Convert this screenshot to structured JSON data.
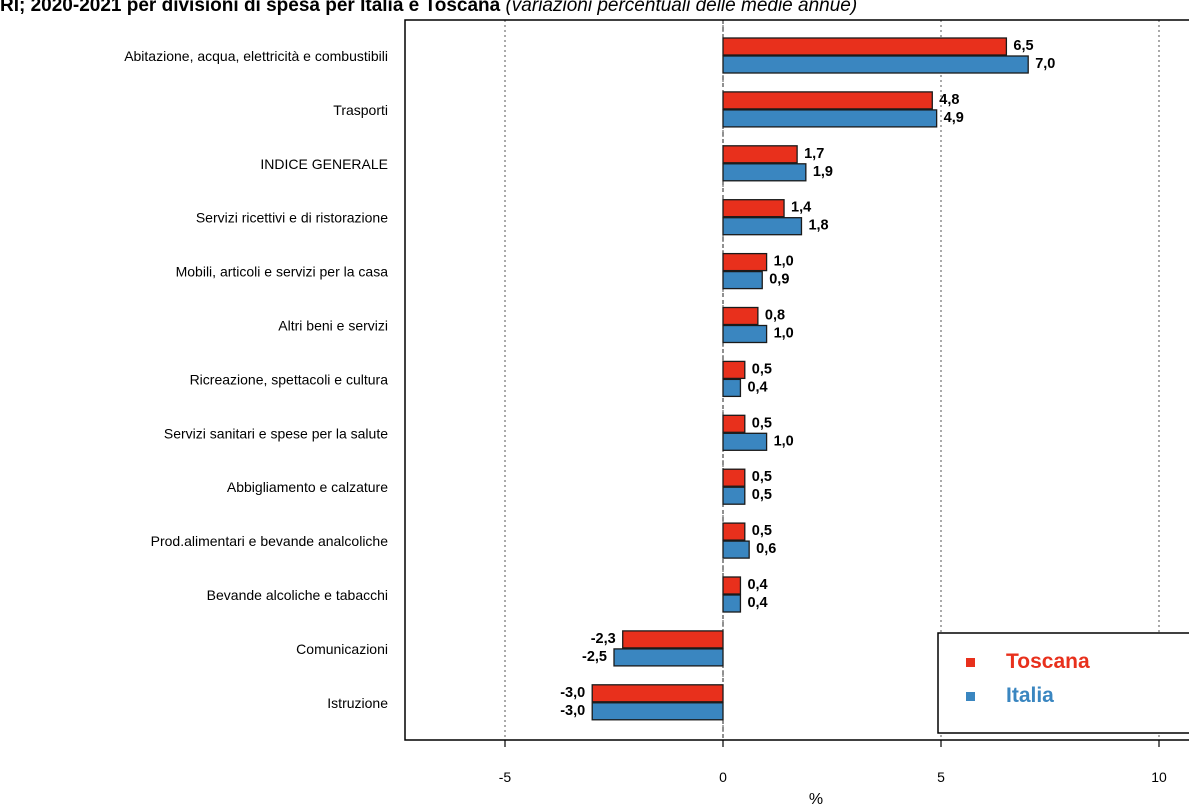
{
  "title": {
    "bold_part": "RI; 2020-2021 per divisioni di spesa per Italia e Toscana",
    "italic_part": "(variazioni percentuali delle medie annue)"
  },
  "chart_data": {
    "type": "bar",
    "orientation": "horizontal",
    "title": "RI; 2020-2021 per divisioni di spesa per Italia e Toscana (variazioni percentuali delle medie annue)",
    "xlabel": "%",
    "xlim": [
      -7,
      10.7
    ],
    "xticks": [
      -5,
      0,
      5,
      10
    ],
    "xtick_labels": [
      "-5",
      "0",
      "5",
      "10"
    ],
    "grid": "vertical dotted lines at ticks",
    "legend_position": "bottom-right",
    "categories": [
      "Abitazione, acqua, elettricità e combustibili",
      "Trasporti",
      "INDICE GENERALE",
      "Servizi ricettivi e di ristorazione",
      "Mobili, articoli e servizi per la casa",
      "Altri beni e servizi",
      "Ricreazione, spettacoli e cultura",
      "Servizi sanitari e spese per la salute",
      "Abbigliamento e calzature",
      "Prod.alimentari e bevande analcoliche",
      "Bevande alcoliche e tabacchi",
      "Comunicazioni",
      "Istruzione"
    ],
    "series": [
      {
        "name": "Toscana",
        "color": "#e8301c",
        "values": [
          6.5,
          4.8,
          1.7,
          1.4,
          1.0,
          0.8,
          0.5,
          0.5,
          0.5,
          0.5,
          0.4,
          -2.3,
          -3.0
        ],
        "labels": [
          "6,5",
          "4,8",
          "1,7",
          "1,4",
          "1,0",
          "0,8",
          "0,5",
          "0,5",
          "0,5",
          "0,5",
          "0,4",
          "-2,3",
          "-3,0"
        ]
      },
      {
        "name": "Italia",
        "color": "#3a86c0",
        "values": [
          7.0,
          4.9,
          1.9,
          1.8,
          0.9,
          1.0,
          0.4,
          1.0,
          0.5,
          0.6,
          0.4,
          -2.5,
          -3.0
        ],
        "labels": [
          "7,0",
          "4,9",
          "1,9",
          "1,8",
          "0,9",
          "1,0",
          "0,4",
          "1,0",
          "0,5",
          "0,6",
          "0,4",
          "-2,5",
          "-3,0"
        ]
      }
    ]
  }
}
